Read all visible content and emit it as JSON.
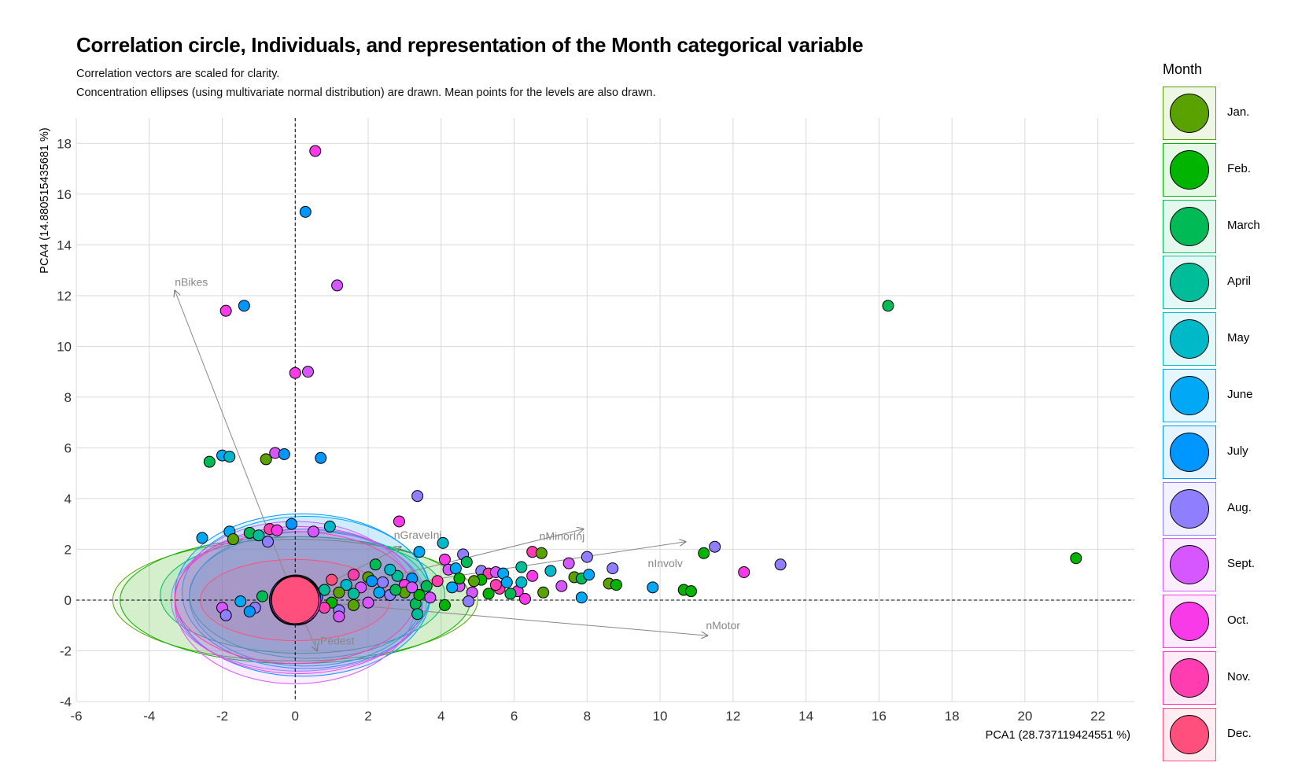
{
  "title": "Correlation circle, Individuals, and representation of the Month categorical variable",
  "subtitle_line1": "Correlation vectors are scaled for clarity.",
  "subtitle_line2": "Concentration ellipses (using multivariate normal distribution) are drawn. Mean points for the levels are also drawn.",
  "legend": {
    "title": "Month",
    "items": [
      {
        "label": "Jan.",
        "color": "#5aa200"
      },
      {
        "label": "Feb.",
        "color": "#00b400"
      },
      {
        "label": "March",
        "color": "#00ba55"
      },
      {
        "label": "April",
        "color": "#00bd99"
      },
      {
        "label": "May",
        "color": "#00b9c8"
      },
      {
        "label": "June",
        "color": "#00a8f5"
      },
      {
        "label": "July",
        "color": "#0096ff"
      },
      {
        "label": "Aug.",
        "color": "#8f7fff"
      },
      {
        "label": "Sept.",
        "color": "#d657ff"
      },
      {
        "label": "Oct.",
        "color": "#f83ae8"
      },
      {
        "label": "Nov.",
        "color": "#ff3db0"
      },
      {
        "label": "Dec.",
        "color": "#ff4f7c"
      }
    ]
  },
  "chart_data": {
    "type": "scatter",
    "xlabel": "PCA1 (28.737119424551 %)",
    "ylabel": "PCA4 (14.880515435681 %)",
    "xlim": [
      -6,
      23
    ],
    "ylim": [
      -4,
      19
    ],
    "xticks": [
      -6,
      -4,
      -2,
      0,
      2,
      4,
      6,
      8,
      10,
      12,
      14,
      16,
      18,
      20,
      22
    ],
    "yticks": [
      -4,
      -2,
      0,
      2,
      4,
      6,
      8,
      10,
      12,
      14,
      16,
      18
    ],
    "grid": true,
    "legend_position": "right",
    "vectors": [
      {
        "name": "nBikes",
        "x": -3.3,
        "y": 12.2
      },
      {
        "name": "nPedest",
        "x": 0.6,
        "y": -2.0
      },
      {
        "name": "nGraveInj",
        "x": 2.9,
        "y": 2.1
      },
      {
        "name": "nMinorInj",
        "x": 7.9,
        "y": 2.8
      },
      {
        "name": "nInvolv",
        "x": 10.7,
        "y": 2.3
      },
      {
        "name": "nMotor",
        "x": 11.3,
        "y": -1.4
      }
    ],
    "ellipses": [
      {
        "month": "Jan.",
        "cx": 0.0,
        "cy": 0.0,
        "rx": 5.0,
        "ry": 2.4
      },
      {
        "month": "Feb.",
        "cx": 0.0,
        "cy": 0.0,
        "rx": 4.8,
        "ry": 2.5
      },
      {
        "month": "March",
        "cx": 0.2,
        "cy": 0.2,
        "rx": 3.9,
        "ry": 2.3
      },
      {
        "month": "April",
        "cx": 0.4,
        "cy": 0.2,
        "rx": 3.3,
        "ry": 2.5
      },
      {
        "month": "May",
        "cx": 0.3,
        "cy": 0.1,
        "rx": 3.2,
        "ry": 2.7
      },
      {
        "month": "June",
        "cx": 0.3,
        "cy": 0.3,
        "rx": 3.4,
        "ry": 3.0
      },
      {
        "month": "July",
        "cx": 0.2,
        "cy": 0.2,
        "rx": 3.5,
        "ry": 3.2
      },
      {
        "month": "Aug.",
        "cx": 0.1,
        "cy": 0.0,
        "rx": 3.5,
        "ry": 2.8
      },
      {
        "month": "Sept.",
        "cx": 0.0,
        "cy": -0.1,
        "rx": 3.3,
        "ry": 3.2
      },
      {
        "month": "Oct.",
        "cx": 0.1,
        "cy": 0.0,
        "rx": 3.4,
        "ry": 2.9
      },
      {
        "month": "Nov.",
        "cx": 0.0,
        "cy": 0.1,
        "rx": 3.3,
        "ry": 2.6
      },
      {
        "month": "Dec.",
        "cx": 0.0,
        "cy": 0.0,
        "rx": 2.6,
        "ry": 1.6
      }
    ],
    "means": [
      {
        "month": "Jan.",
        "x": -0.05,
        "y": -0.05
      },
      {
        "month": "Feb.",
        "x": 0.05,
        "y": 0.05
      },
      {
        "month": "March",
        "x": -0.02,
        "y": 0.02
      },
      {
        "month": "April",
        "x": 0.03,
        "y": -0.03
      },
      {
        "month": "May",
        "x": -0.04,
        "y": 0.04
      },
      {
        "month": "June",
        "x": 0.02,
        "y": 0.06
      },
      {
        "month": "July",
        "x": -0.06,
        "y": 0.0
      },
      {
        "month": "Aug.",
        "x": 0.04,
        "y": -0.06
      },
      {
        "month": "Sept.",
        "x": -0.03,
        "y": -0.02
      },
      {
        "month": "Oct.",
        "x": 0.05,
        "y": -0.02
      },
      {
        "month": "Nov.",
        "x": 0.0,
        "y": 0.03
      },
      {
        "month": "Dec.",
        "x": 0.0,
        "y": 0.0
      }
    ],
    "points": [
      {
        "x": 0.55,
        "y": 17.7,
        "month": "Oct."
      },
      {
        "x": 0.28,
        "y": 15.3,
        "month": "July"
      },
      {
        "x": 1.15,
        "y": 12.4,
        "month": "Sept."
      },
      {
        "x": -1.4,
        "y": 11.6,
        "month": "July"
      },
      {
        "x": -1.9,
        "y": 11.4,
        "month": "Oct."
      },
      {
        "x": 16.25,
        "y": 11.6,
        "month": "March"
      },
      {
        "x": 0.0,
        "y": 8.95,
        "month": "Oct."
      },
      {
        "x": 0.35,
        "y": 9.0,
        "month": "Sept."
      },
      {
        "x": -2.35,
        "y": 5.45,
        "month": "March"
      },
      {
        "x": -2.0,
        "y": 5.7,
        "month": "June"
      },
      {
        "x": -1.8,
        "y": 5.65,
        "month": "May"
      },
      {
        "x": -0.8,
        "y": 5.55,
        "month": "Jan."
      },
      {
        "x": -0.55,
        "y": 5.8,
        "month": "Sept."
      },
      {
        "x": -0.3,
        "y": 5.75,
        "month": "July"
      },
      {
        "x": 0.7,
        "y": 5.6,
        "month": "July"
      },
      {
        "x": 3.35,
        "y": 4.1,
        "month": "Aug."
      },
      {
        "x": -2.55,
        "y": 2.45,
        "month": "June"
      },
      {
        "x": -1.8,
        "y": 2.7,
        "month": "June"
      },
      {
        "x": -1.7,
        "y": 2.4,
        "month": "Jan."
      },
      {
        "x": -1.25,
        "y": 2.65,
        "month": "March"
      },
      {
        "x": -1.0,
        "y": 2.55,
        "month": "April"
      },
      {
        "x": -0.75,
        "y": 2.3,
        "month": "Aug."
      },
      {
        "x": -0.7,
        "y": 2.8,
        "month": "Nov."
      },
      {
        "x": -0.5,
        "y": 2.75,
        "month": "Oct."
      },
      {
        "x": -0.1,
        "y": 3.0,
        "month": "July"
      },
      {
        "x": 0.5,
        "y": 2.7,
        "month": "Sept."
      },
      {
        "x": 0.95,
        "y": 2.9,
        "month": "May"
      },
      {
        "x": 2.85,
        "y": 3.1,
        "month": "Oct."
      },
      {
        "x": 3.4,
        "y": 1.9,
        "month": "June"
      },
      {
        "x": 4.05,
        "y": 2.25,
        "month": "May"
      },
      {
        "x": 4.1,
        "y": 1.6,
        "month": "Oct."
      },
      {
        "x": 4.6,
        "y": 1.8,
        "month": "Aug."
      },
      {
        "x": 4.7,
        "y": 1.5,
        "month": "March"
      },
      {
        "x": 4.2,
        "y": 1.2,
        "month": "Sept."
      },
      {
        "x": 4.4,
        "y": 1.25,
        "month": "June"
      },
      {
        "x": 5.1,
        "y": 1.15,
        "month": "Aug."
      },
      {
        "x": 5.3,
        "y": 1.05,
        "month": "Nov."
      },
      {
        "x": 5.5,
        "y": 1.1,
        "month": "Sept."
      },
      {
        "x": 5.7,
        "y": 1.05,
        "month": "June"
      },
      {
        "x": 6.2,
        "y": 1.3,
        "month": "April"
      },
      {
        "x": 6.5,
        "y": 1.9,
        "month": "Nov."
      },
      {
        "x": 6.75,
        "y": 1.85,
        "month": "Jan."
      },
      {
        "x": 6.5,
        "y": 0.95,
        "month": "Oct."
      },
      {
        "x": 7.0,
        "y": 1.15,
        "month": "May"
      },
      {
        "x": 7.5,
        "y": 1.45,
        "month": "Sept."
      },
      {
        "x": 7.65,
        "y": 0.9,
        "month": "Jan."
      },
      {
        "x": 7.85,
        "y": 0.85,
        "month": "March"
      },
      {
        "x": 8.0,
        "y": 1.7,
        "month": "Aug."
      },
      {
        "x": 8.05,
        "y": 1.0,
        "month": "June"
      },
      {
        "x": 8.7,
        "y": 1.25,
        "month": "Aug."
      },
      {
        "x": 8.6,
        "y": 0.65,
        "month": "Jan."
      },
      {
        "x": 8.8,
        "y": 0.6,
        "month": "Feb."
      },
      {
        "x": 7.3,
        "y": 0.55,
        "month": "Sept."
      },
      {
        "x": 6.8,
        "y": 0.3,
        "month": "Jan."
      },
      {
        "x": 6.1,
        "y": 0.35,
        "month": "Oct."
      },
      {
        "x": 6.3,
        "y": 0.05,
        "month": "Oct."
      },
      {
        "x": 5.9,
        "y": 0.25,
        "month": "March"
      },
      {
        "x": 5.6,
        "y": 0.45,
        "month": "Nov."
      },
      {
        "x": 5.3,
        "y": 0.25,
        "month": "Feb."
      },
      {
        "x": 4.85,
        "y": 0.3,
        "month": "Sept."
      },
      {
        "x": 4.5,
        "y": 0.55,
        "month": "Sept."
      },
      {
        "x": 4.75,
        "y": -0.05,
        "month": "Aug."
      },
      {
        "x": 4.1,
        "y": -0.2,
        "month": "Feb."
      },
      {
        "x": 3.3,
        "y": -0.15,
        "month": "March"
      },
      {
        "x": 3.35,
        "y": -0.55,
        "month": "April"
      },
      {
        "x": 9.8,
        "y": 0.5,
        "month": "June"
      },
      {
        "x": 10.65,
        "y": 0.4,
        "month": "Feb."
      },
      {
        "x": 10.85,
        "y": 0.35,
        "month": "Feb."
      },
      {
        "x": 11.2,
        "y": 1.85,
        "month": "Feb."
      },
      {
        "x": 11.5,
        "y": 2.1,
        "month": "Aug."
      },
      {
        "x": 12.3,
        "y": 1.1,
        "month": "Oct."
      },
      {
        "x": 13.3,
        "y": 1.4,
        "month": "Aug."
      },
      {
        "x": 21.4,
        "y": 1.65,
        "month": "Feb."
      },
      {
        "x": 7.85,
        "y": 0.1,
        "month": "June"
      },
      {
        "x": 5.8,
        "y": 0.7,
        "month": "June"
      },
      {
        "x": 5.1,
        "y": 0.8,
        "month": "Feb."
      },
      {
        "x": 4.9,
        "y": 0.75,
        "month": "Jan."
      },
      {
        "x": 4.3,
        "y": 0.5,
        "month": "June"
      },
      {
        "x": 3.9,
        "y": 0.75,
        "month": "Nov."
      },
      {
        "x": 3.6,
        "y": 0.55,
        "month": "March"
      },
      {
        "x": 3.2,
        "y": 0.85,
        "month": "July"
      },
      {
        "x": 3.0,
        "y": 0.6,
        "month": "Oct."
      },
      {
        "x": 2.8,
        "y": 0.95,
        "month": "April"
      },
      {
        "x": 2.6,
        "y": 1.2,
        "month": "May"
      },
      {
        "x": 2.4,
        "y": 0.7,
        "month": "Aug."
      },
      {
        "x": 2.2,
        "y": 1.4,
        "month": "March"
      },
      {
        "x": 2.0,
        "y": 0.9,
        "month": "Jan."
      },
      {
        "x": 1.8,
        "y": 0.5,
        "month": "Sept."
      },
      {
        "x": 1.6,
        "y": 1.0,
        "month": "Nov."
      },
      {
        "x": 1.4,
        "y": 0.6,
        "month": "May"
      },
      {
        "x": 1.2,
        "y": 0.3,
        "month": "Jan."
      },
      {
        "x": 1.0,
        "y": 0.8,
        "month": "Dec."
      },
      {
        "x": 0.8,
        "y": 0.4,
        "month": "April"
      },
      {
        "x": 0.6,
        "y": 0.1,
        "month": "July"
      },
      {
        "x": 2.3,
        "y": 0.3,
        "month": "June"
      },
      {
        "x": 2.6,
        "y": 0.2,
        "month": "Aug."
      },
      {
        "x": 2.0,
        "y": -0.1,
        "month": "Sept."
      },
      {
        "x": 1.6,
        "y": -0.2,
        "month": "Jan."
      },
      {
        "x": 1.2,
        "y": -0.4,
        "month": "Aug."
      },
      {
        "x": 1.0,
        "y": -0.1,
        "month": "Feb."
      },
      {
        "x": 0.8,
        "y": -0.3,
        "month": "Nov."
      },
      {
        "x": -0.2,
        "y": -0.35,
        "month": "Oct."
      },
      {
        "x": -0.5,
        "y": -0.15,
        "month": "July"
      },
      {
        "x": -0.9,
        "y": 0.15,
        "month": "March"
      },
      {
        "x": -1.1,
        "y": -0.3,
        "month": "Aug."
      },
      {
        "x": -1.5,
        "y": -0.05,
        "month": "June"
      },
      {
        "x": -2.0,
        "y": -0.3,
        "month": "Sept."
      },
      {
        "x": -1.9,
        "y": -0.6,
        "month": "Aug."
      },
      {
        "x": -1.25,
        "y": -0.45,
        "month": "July"
      },
      {
        "x": 1.2,
        "y": -0.65,
        "month": "Sept."
      },
      {
        "x": 3.4,
        "y": 0.2,
        "month": "Feb."
      },
      {
        "x": 3.7,
        "y": 0.1,
        "month": "Sept."
      },
      {
        "x": 4.5,
        "y": 0.85,
        "month": "Feb."
      },
      {
        "x": 5.5,
        "y": 0.6,
        "month": "Nov."
      },
      {
        "x": 6.2,
        "y": 0.7,
        "month": "May"
      },
      {
        "x": 3.0,
        "y": 0.3,
        "month": "Jan."
      },
      {
        "x": 2.1,
        "y": 0.75,
        "month": "July"
      },
      {
        "x": 2.75,
        "y": 0.4,
        "month": "March"
      },
      {
        "x": 3.2,
        "y": 0.5,
        "month": "Sept."
      },
      {
        "x": 1.6,
        "y": 0.25,
        "month": "April"
      }
    ]
  }
}
